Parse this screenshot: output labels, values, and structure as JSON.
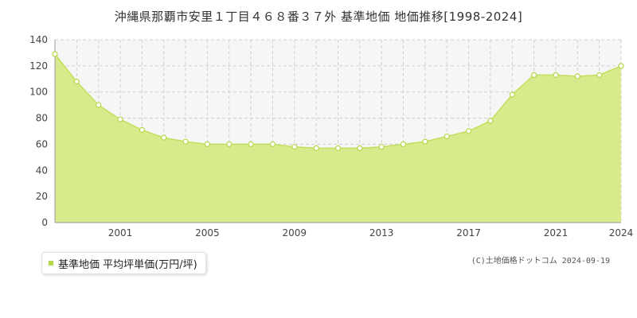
{
  "colors": {
    "fill": "#d7eb8c",
    "line": "#c3df5c",
    "marker_fill": "#ffffff",
    "marker_stroke": "#b5d84a",
    "grid": "#d0d0d0",
    "axis": "#999999",
    "plot_bg": "#f6f6f6"
  },
  "legend": {
    "label": "基準地価 平均坪単価(万円/坪)"
  },
  "credit": "(C)土地価格ドットコム 2024-09-19",
  "chart_data": {
    "type": "area",
    "title": "沖縄県那覇市安里１丁目４６８番３７外 基準地価 地価推移[1998-2024]",
    "xlabel": "",
    "ylabel": "",
    "series": [
      {
        "name": "基準地価 平均坪単価(万円/坪)",
        "x": [
          1998,
          1999,
          2000,
          2001,
          2002,
          2003,
          2004,
          2005,
          2006,
          2007,
          2008,
          2009,
          2010,
          2011,
          2012,
          2013,
          2014,
          2015,
          2016,
          2017,
          2018,
          2019,
          2020,
          2021,
          2022,
          2023,
          2024
        ],
        "values": [
          129,
          108,
          90,
          79,
          71,
          65,
          62,
          60,
          60,
          60,
          60,
          58,
          57,
          57,
          57,
          58,
          60,
          62,
          66,
          70,
          78,
          98,
          113,
          113,
          112,
          113,
          120
        ]
      }
    ],
    "xlim": [
      1998,
      2024
    ],
    "ylim": [
      0,
      140
    ],
    "x_ticks": [
      "2001",
      "2005",
      "2009",
      "2013",
      "2017",
      "2021",
      "2024"
    ],
    "y_ticks": [
      "0",
      "20",
      "40",
      "60",
      "80",
      "100",
      "120",
      "140"
    ],
    "grid": true,
    "legend_position": "bottom-left"
  }
}
